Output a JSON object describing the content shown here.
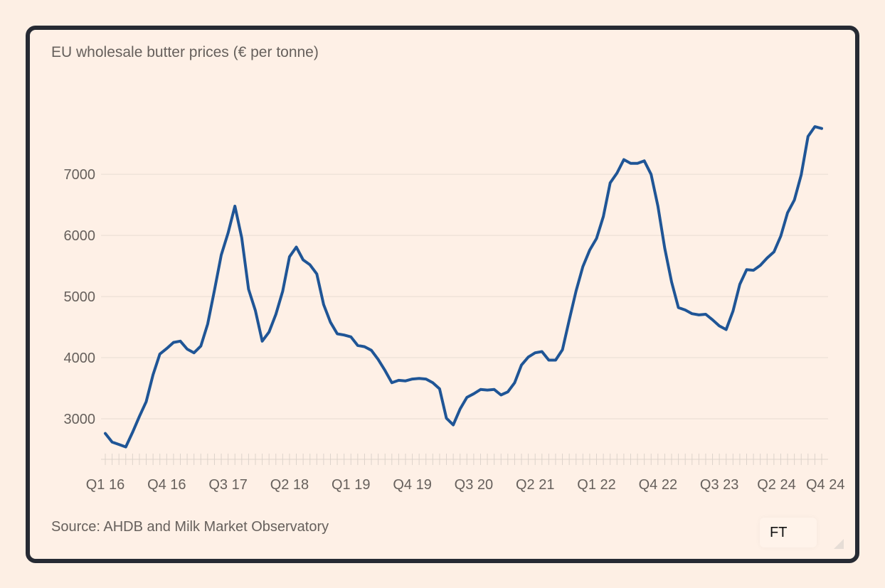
{
  "badge": {
    "text": "FT"
  },
  "icons": {
    "resize": "resize-handle-icon"
  },
  "colors": {
    "line": "#1f5596",
    "grid": "#e8dcd2",
    "text": "#66605c",
    "frame": "#262a33",
    "background": "#fef0e6"
  },
  "chart_data": {
    "type": "line",
    "title": "EU wholesale butter prices (€ per tonne)",
    "source": "Source: AHDB and Milk Market Observatory",
    "xlabel": "",
    "ylabel": "",
    "y_ticks": [
      3000,
      4000,
      5000,
      6000,
      7000
    ],
    "ylim": [
      2500,
      8200
    ],
    "grid": true,
    "x_tick_labels": [
      "Q1 16",
      "Q4 16",
      "Q3 17",
      "Q2 18",
      "Q1 19",
      "Q4 19",
      "Q3 20",
      "Q2 21",
      "Q1 22",
      "Q4 22",
      "Q3 23",
      "Q2 24",
      "Q4 24"
    ],
    "x_tick_months": [
      0,
      9,
      18,
      27,
      36,
      45,
      54,
      63,
      72,
      81,
      90,
      99,
      105
    ],
    "series": [
      {
        "values": [
          2760,
          2620,
          2580,
          2540,
          2780,
          3040,
          3280,
          3720,
          4060,
          4150,
          4250,
          4270,
          4140,
          4080,
          4190,
          4550,
          5100,
          5680,
          6040,
          6480,
          5960,
          5120,
          4770,
          4270,
          4420,
          4710,
          5090,
          5650,
          5810,
          5600,
          5520,
          5370,
          4870,
          4580,
          4390,
          4370,
          4340,
          4200,
          4180,
          4120,
          3970,
          3790,
          3590,
          3630,
          3620,
          3650,
          3660,
          3650,
          3590,
          3490,
          3010,
          2900,
          3160,
          3350,
          3410,
          3480,
          3470,
          3480,
          3390,
          3440,
          3590,
          3880,
          4010,
          4080,
          4100,
          3960,
          3960,
          4130,
          4620,
          5090,
          5490,
          5760,
          5950,
          6310,
          6860,
          7020,
          7240,
          7180,
          7180,
          7220,
          7000,
          6480,
          5790,
          5240,
          4820,
          4780,
          4720,
          4700,
          4710,
          4620,
          4520,
          4460,
          4760,
          5200,
          5440,
          5430,
          5510,
          5630,
          5730,
          5990,
          6370,
          6580,
          6990,
          7620,
          7780,
          7750
        ]
      }
    ]
  }
}
